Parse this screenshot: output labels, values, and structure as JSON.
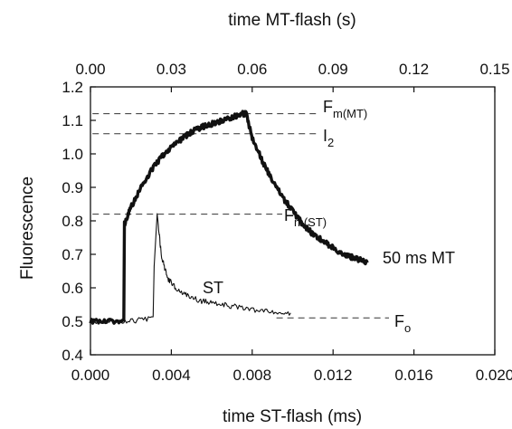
{
  "chart_data": {
    "type": "line",
    "title": "",
    "xlabel_bottom": "time ST-flash (ms)",
    "xlabel_top": "time  MT-flash (s)",
    "ylabel": "Fluorescence",
    "xlim_bottom": [
      0.0,
      0.02
    ],
    "xlim_top": [
      0.0,
      0.15
    ],
    "ylim": [
      0.4,
      1.2
    ],
    "xticks_bottom": [
      "0.000",
      "0.004",
      "0.008",
      "0.012",
      "0.016",
      "0.020"
    ],
    "xticks_top": [
      "0.00",
      "0.03",
      "0.06",
      "0.09",
      "0.12",
      "0.15"
    ],
    "yticks": [
      "0.4",
      "0.5",
      "0.6",
      "0.7",
      "0.8",
      "0.9",
      "1.0",
      "1.1",
      "1.2"
    ],
    "grid": false,
    "reference_lines": [
      {
        "label": "F",
        "sub": "m(MT)",
        "y": 1.12
      },
      {
        "label": "I",
        "sub": "2",
        "y": 1.06
      },
      {
        "label": "F",
        "sub": "m(ST)",
        "y": 0.82
      },
      {
        "label": "F",
        "sub": "o",
        "y": 0.51
      }
    ],
    "series": [
      {
        "name": "50 ms MT",
        "axis": "bottom",
        "points": [
          [
            0.0,
            0.5
          ],
          [
            0.0008,
            0.5
          ],
          [
            0.00165,
            0.5
          ],
          [
            0.00168,
            0.79
          ],
          [
            0.002,
            0.84
          ],
          [
            0.0025,
            0.9
          ],
          [
            0.003,
            0.95
          ],
          [
            0.0035,
            0.99
          ],
          [
            0.004,
            1.02
          ],
          [
            0.0045,
            1.045
          ],
          [
            0.005,
            1.065
          ],
          [
            0.0055,
            1.08
          ],
          [
            0.006,
            1.09
          ],
          [
            0.0065,
            1.1
          ],
          [
            0.007,
            1.11
          ],
          [
            0.0075,
            1.12
          ],
          [
            0.0077,
            1.12
          ],
          [
            0.008,
            1.05
          ],
          [
            0.0085,
            0.98
          ],
          [
            0.009,
            0.92
          ],
          [
            0.0095,
            0.87
          ],
          [
            0.01,
            0.83
          ],
          [
            0.0105,
            0.79
          ],
          [
            0.011,
            0.76
          ],
          [
            0.0115,
            0.74
          ],
          [
            0.012,
            0.72
          ],
          [
            0.0125,
            0.7
          ],
          [
            0.013,
            0.69
          ],
          [
            0.0137,
            0.675
          ]
        ]
      },
      {
        "name": "ST",
        "axis": "bottom",
        "points": [
          [
            0.0,
            0.5
          ],
          [
            0.001,
            0.5
          ],
          [
            0.002,
            0.5
          ],
          [
            0.0031,
            0.51
          ],
          [
            0.00315,
            0.66
          ],
          [
            0.0033,
            0.82
          ],
          [
            0.0035,
            0.7
          ],
          [
            0.0038,
            0.63
          ],
          [
            0.0042,
            0.6
          ],
          [
            0.0048,
            0.575
          ],
          [
            0.0055,
            0.56
          ],
          [
            0.0062,
            0.555
          ],
          [
            0.007,
            0.545
          ],
          [
            0.008,
            0.535
          ],
          [
            0.009,
            0.53
          ],
          [
            0.0099,
            0.525
          ]
        ]
      }
    ]
  }
}
